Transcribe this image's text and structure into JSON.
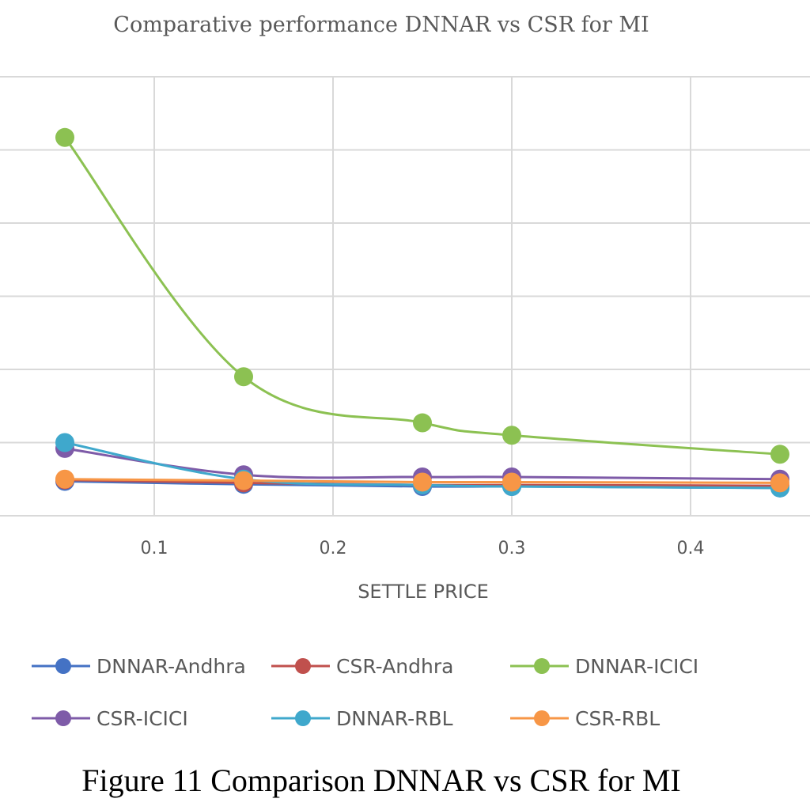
{
  "chart_data": {
    "type": "line",
    "title": "Comparative  performance  DNNAR vs CSR  for MI",
    "xlabel": "SETTLE PRICE",
    "ylabel": "",
    "xlim": [
      0.01,
      0.5
    ],
    "ylim": [
      0,
      6
    ],
    "x_ticks": [
      0.1,
      0.2,
      0.3,
      0.4
    ],
    "x_tick_labels": [
      "0.1",
      "0.2",
      "0.3",
      "0.4"
    ],
    "y_grid": [
      0,
      1,
      2,
      3,
      4,
      5,
      6
    ],
    "grid": true,
    "legend_position": "bottom",
    "x": [
      0.05,
      0.15,
      0.25,
      0.3,
      0.45
    ],
    "series": [
      {
        "name": "DNNAR-Andhra",
        "color": "#4472C4",
        "values": [
          0.47,
          0.43,
          0.4,
          0.4,
          0.38
        ]
      },
      {
        "name": "CSR-Andhra",
        "color": "#C0504D",
        "values": [
          0.49,
          0.45,
          0.42,
          0.42,
          0.41
        ]
      },
      {
        "name": "DNNAR-ICICI",
        "color": "#8CC152",
        "values": [
          5.17,
          1.9,
          1.27,
          1.1,
          0.84
        ]
      },
      {
        "name": "CSR-ICICI",
        "color": "#7E5BA8",
        "values": [
          0.92,
          0.56,
          0.53,
          0.53,
          0.5
        ]
      },
      {
        "name": "DNNAR-RBL",
        "color": "#3FA8CC",
        "values": [
          1.0,
          0.5,
          0.42,
          0.4,
          0.38
        ]
      },
      {
        "name": "CSR-RBL",
        "color": "#F79646",
        "values": [
          0.5,
          0.48,
          0.46,
          0.46,
          0.45
        ]
      }
    ]
  },
  "caption": "Figure 11 Comparison DNNAR vs CSR for MI"
}
